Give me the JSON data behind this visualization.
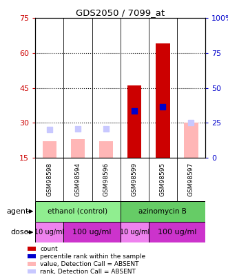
{
  "title": "GDS2050 / 7099_at",
  "samples": [
    "GSM98598",
    "GSM98594",
    "GSM98596",
    "GSM98599",
    "GSM98595",
    "GSM98597"
  ],
  "left_ylim": [
    15,
    75
  ],
  "right_ylim": [
    0,
    100
  ],
  "left_yticks": [
    15,
    30,
    45,
    60,
    75
  ],
  "right_yticks": [
    0,
    25,
    50,
    75,
    100
  ],
  "right_yticklabels": [
    "0",
    "25",
    "50",
    "75",
    "100%"
  ],
  "bar_width": 0.5,
  "red_bars": [
    null,
    null,
    null,
    46,
    64,
    null
  ],
  "blue_markers": [
    null,
    null,
    null,
    35,
    37,
    null
  ],
  "pink_bars": [
    22,
    23,
    22,
    null,
    null,
    30
  ],
  "lavender_markers": [
    27,
    27.5,
    27.5,
    null,
    null,
    30
  ],
  "grid_yticks": [
    30,
    45,
    60
  ],
  "ethanol_color": "#90ee90",
  "azinomycin_color": "#66cc66",
  "dose_light_color": "#ee82ee",
  "dose_dark_color": "#cc33cc",
  "sample_bg_color": "#c8c8c8",
  "left_tick_color": "#cc0000",
  "right_tick_color": "#0000cc",
  "legend_items": [
    {
      "label": "count",
      "color": "#cc0000"
    },
    {
      "label": "percentile rank within the sample",
      "color": "#0000cc"
    },
    {
      "label": "value, Detection Call = ABSENT",
      "color": "#ffb6b6"
    },
    {
      "label": "rank, Detection Call = ABSENT",
      "color": "#c8c8ff"
    }
  ],
  "bg_color": "#ffffff"
}
